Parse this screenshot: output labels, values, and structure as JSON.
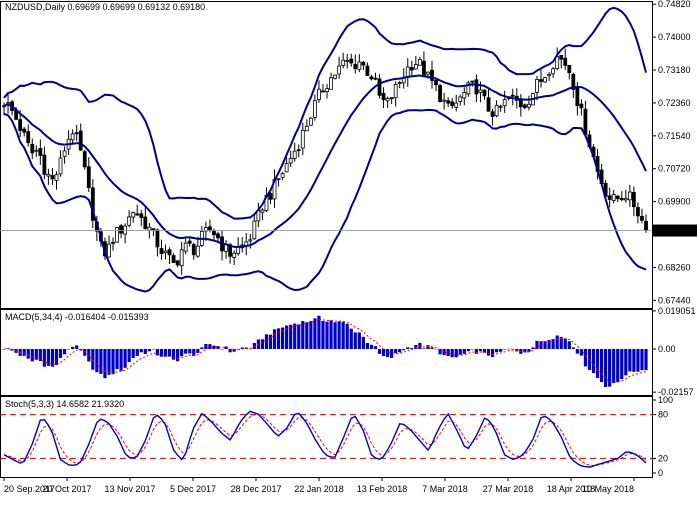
{
  "chart_data": [
    {
      "type": "candlestick",
      "title": "NZDUSD,Daily",
      "ohlc_text": "0.69699 0.69699 0.69132 0.69180",
      "ylim": [
        0.6725,
        0.749
      ],
      "y_ticks": [
        "0.74820",
        "0.74000",
        "0.73180",
        "0.72360",
        "0.71540",
        "0.70720",
        "0.69900",
        "0.68260",
        "0.67440"
      ],
      "current_price": "0.69180",
      "x_labels": [
        "20 Sep 2017",
        "20 Oct 2017",
        "13 Nov 2017",
        "5 Dec 2017",
        "28 Dec 2017",
        "22 Jan 2018",
        "13 Feb 2018",
        "7 Mar 2018",
        "27 Mar 2018",
        "18 Apr 2018",
        "10 May 2018"
      ],
      "close_path": [
        0.724,
        0.722,
        0.719,
        0.715,
        0.711,
        0.712,
        0.707,
        0.704,
        0.707,
        0.713,
        0.717,
        0.713,
        0.705,
        0.696,
        0.688,
        0.686,
        0.69,
        0.692,
        0.694,
        0.697,
        0.695,
        0.693,
        0.69,
        0.687,
        0.685,
        0.683,
        0.687,
        0.688,
        0.687,
        0.69,
        0.692,
        0.691,
        0.688,
        0.686,
        0.687,
        0.688,
        0.69,
        0.694,
        0.699,
        0.701,
        0.704,
        0.707,
        0.71,
        0.713,
        0.717,
        0.721,
        0.725,
        0.728,
        0.73,
        0.732,
        0.734,
        0.733,
        0.734,
        0.732,
        0.73,
        0.725,
        0.723,
        0.726,
        0.729,
        0.732,
        0.734,
        0.733,
        0.73,
        0.728,
        0.725,
        0.722,
        0.723,
        0.725,
        0.727,
        0.728,
        0.725,
        0.722,
        0.721,
        0.723,
        0.725,
        0.724,
        0.723,
        0.725,
        0.728,
        0.73,
        0.733,
        0.735,
        0.734,
        0.731,
        0.724,
        0.718,
        0.712,
        0.706,
        0.702,
        0.699,
        0.7,
        0.701,
        0.699,
        0.696,
        0.6918
      ],
      "series": [
        {
          "name": "",
          "type": "bollinger_upper"
        },
        {
          "name": "",
          "type": "bollinger_middle"
        },
        {
          "name": "",
          "type": "bollinger_lower"
        }
      ]
    },
    {
      "type": "histogram",
      "title": "MACD(5,34,4) -0.016404 -0.015393",
      "ylim": [
        -0.023,
        0.02
      ],
      "y_ticks": [
        "0.019051",
        "0.00",
        "-0.02157"
      ],
      "bar_color": "#0000cc",
      "signal_color": "#ff0000"
    },
    {
      "type": "line",
      "title": "Stoch(5,3,3) 14.6582 21.9320",
      "ylim": [
        0,
        100
      ],
      "y_ticks": [
        "100",
        "80",
        "20",
        "0"
      ],
      "main_color": "#0000cc",
      "signal_color": "#ff0000",
      "levels": [
        20,
        80
      ],
      "stoch_path": [
        25,
        18,
        12,
        40,
        78,
        60,
        18,
        10,
        12,
        40,
        75,
        70,
        50,
        22,
        20,
        45,
        82,
        70,
        30,
        16,
        60,
        82,
        70,
        55,
        45,
        70,
        85,
        80,
        65,
        50,
        62,
        85,
        70,
        45,
        25,
        20,
        50,
        82,
        60,
        22,
        18,
        40,
        70,
        60,
        45,
        30,
        60,
        82,
        58,
        30,
        50,
        78,
        60,
        25,
        18,
        25,
        45,
        80,
        72,
        50,
        20,
        10,
        8,
        12,
        16,
        20,
        30,
        25,
        14
      ]
    }
  ]
}
